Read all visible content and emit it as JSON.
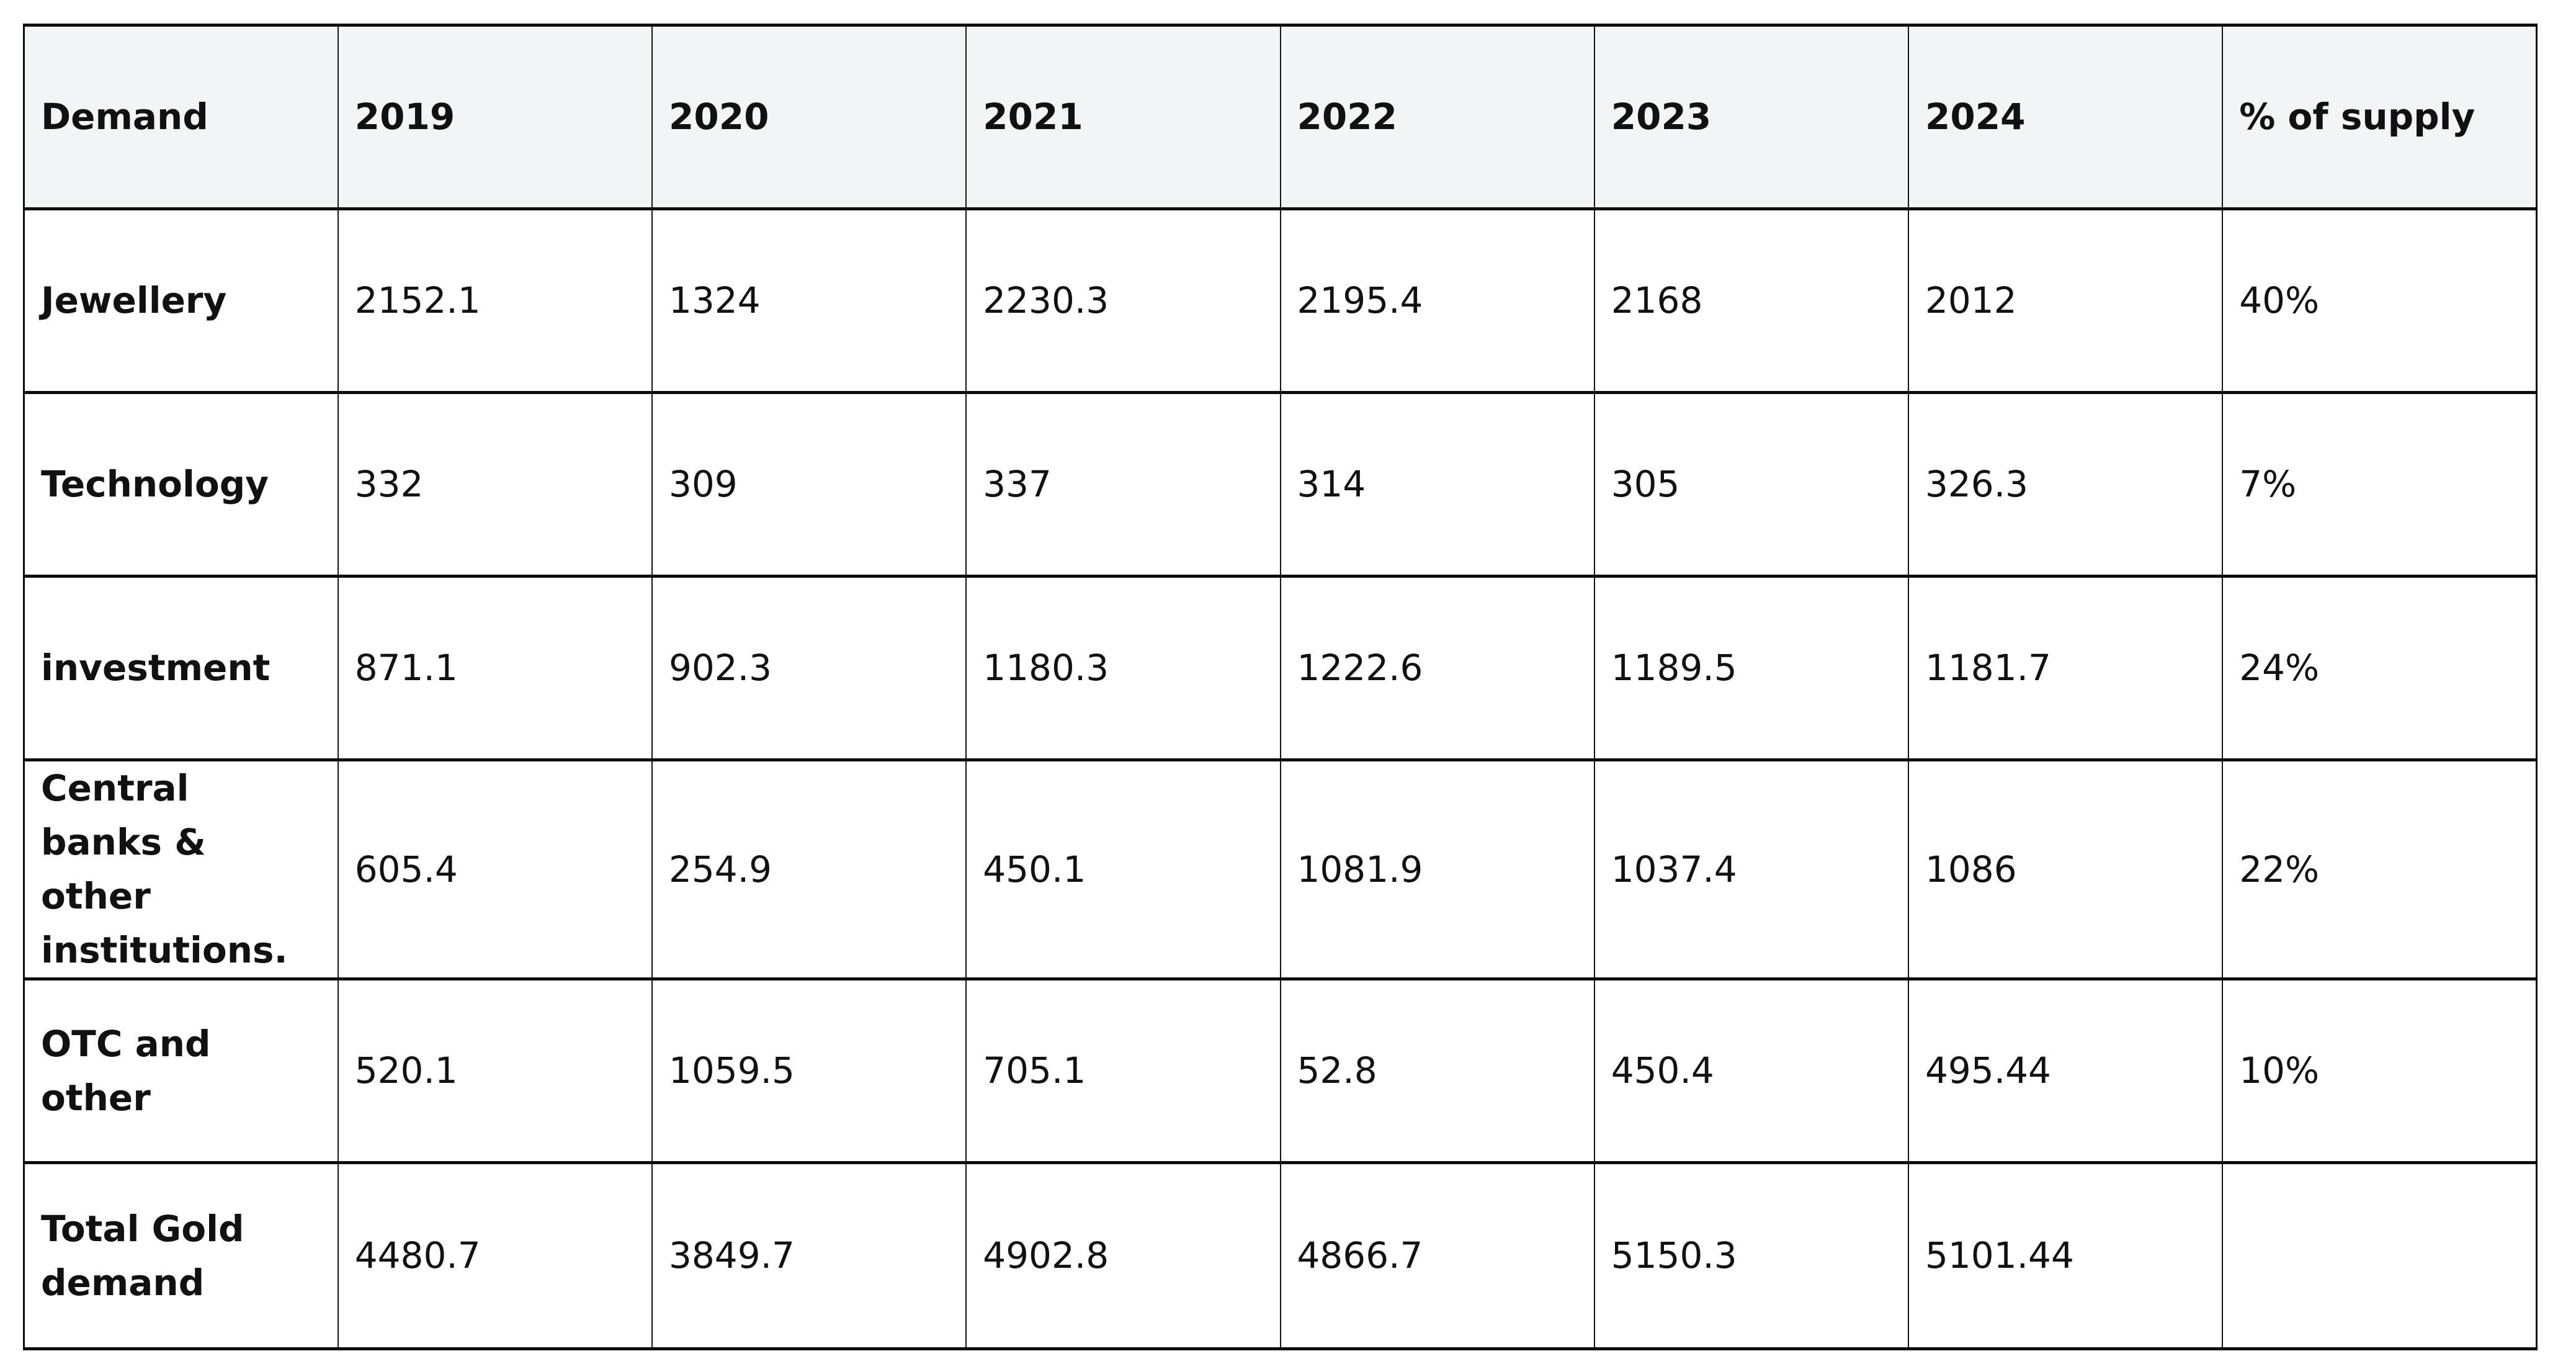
{
  "chart_data": {
    "type": "table",
    "columns": [
      "Demand",
      "2019",
      "2020",
      "2021",
      "2022",
      "2023",
      "2024",
      "% of supply"
    ],
    "rows": [
      {
        "label": "Jewellery",
        "values": [
          "2152.1",
          "1324",
          "2230.3",
          "2195.4",
          "2168",
          "2012",
          "40%"
        ]
      },
      {
        "label": "Technology",
        "values": [
          "332",
          "309",
          "337",
          "314",
          "305",
          "326.3",
          "7%"
        ]
      },
      {
        "label": "investment",
        "values": [
          "871.1",
          "902.3",
          "1180.3",
          "1222.6",
          "1189.5",
          "1181.7",
          "24%"
        ]
      },
      {
        "label": "Central banks & other institutions.",
        "values": [
          "605.4",
          "254.9",
          "450.1",
          "1081.9",
          "1037.4",
          "1086",
          "22%"
        ]
      },
      {
        "label": "OTC and other",
        "values": [
          "520.1",
          "1059.5",
          "705.1",
          "52.8",
          "450.4",
          "495.44",
          "10%"
        ]
      },
      {
        "label": "Total Gold demand",
        "values": [
          "4480.7",
          "3849.7",
          "4902.8",
          "4866.7",
          "5150.3",
          "5101.44",
          ""
        ]
      }
    ]
  },
  "colors": {
    "header_bg": "#f3f4f5",
    "border": "#0d0d0d",
    "text": "#111111",
    "page_bg": "#ffffff"
  }
}
